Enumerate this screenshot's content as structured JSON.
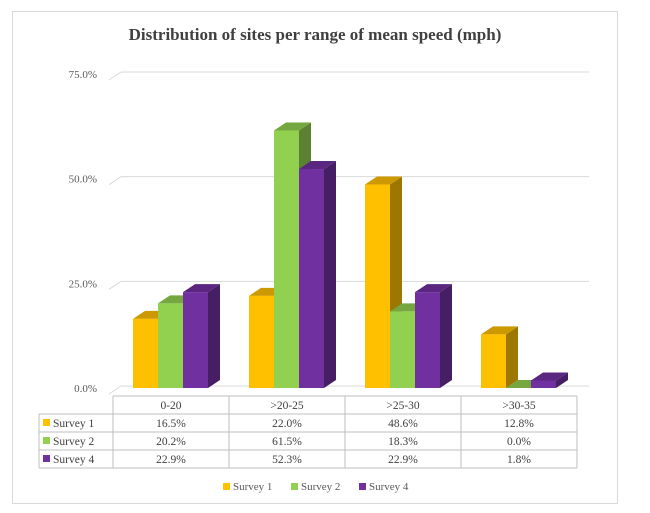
{
  "chart_data": {
    "type": "bar",
    "style": "3d-clustered-column-with-data-table",
    "title": "Distribution of sites per range of mean speed (mph)",
    "xlabel": "",
    "ylabel": "",
    "ylim": [
      0,
      75
    ],
    "yticks": [
      "0.0%",
      "25.0%",
      "50.0%",
      "75.0%"
    ],
    "ytick_values": [
      0,
      25,
      50,
      75
    ],
    "grid": true,
    "legend_position": "bottom",
    "categories": [
      "0-20",
      ">20-25",
      ">25-30",
      ">30-35"
    ],
    "series": [
      {
        "name": "Survey 1",
        "color": "#FFC000",
        "values": [
          16.5,
          22.0,
          48.6,
          12.8
        ],
        "labels": [
          "16.5%",
          "22.0%",
          "48.6%",
          "12.8%"
        ]
      },
      {
        "name": "Survey 2",
        "color": "#92D050",
        "values": [
          20.2,
          61.5,
          18.3,
          0.0
        ],
        "labels": [
          "20.2%",
          "61.5%",
          "18.3%",
          "0.0%"
        ]
      },
      {
        "name": "Survey 4",
        "color": "#7030A0",
        "values": [
          22.9,
          52.3,
          22.9,
          1.8
        ],
        "labels": [
          "22.9%",
          "52.3%",
          "22.9%",
          "1.8%"
        ]
      }
    ]
  }
}
